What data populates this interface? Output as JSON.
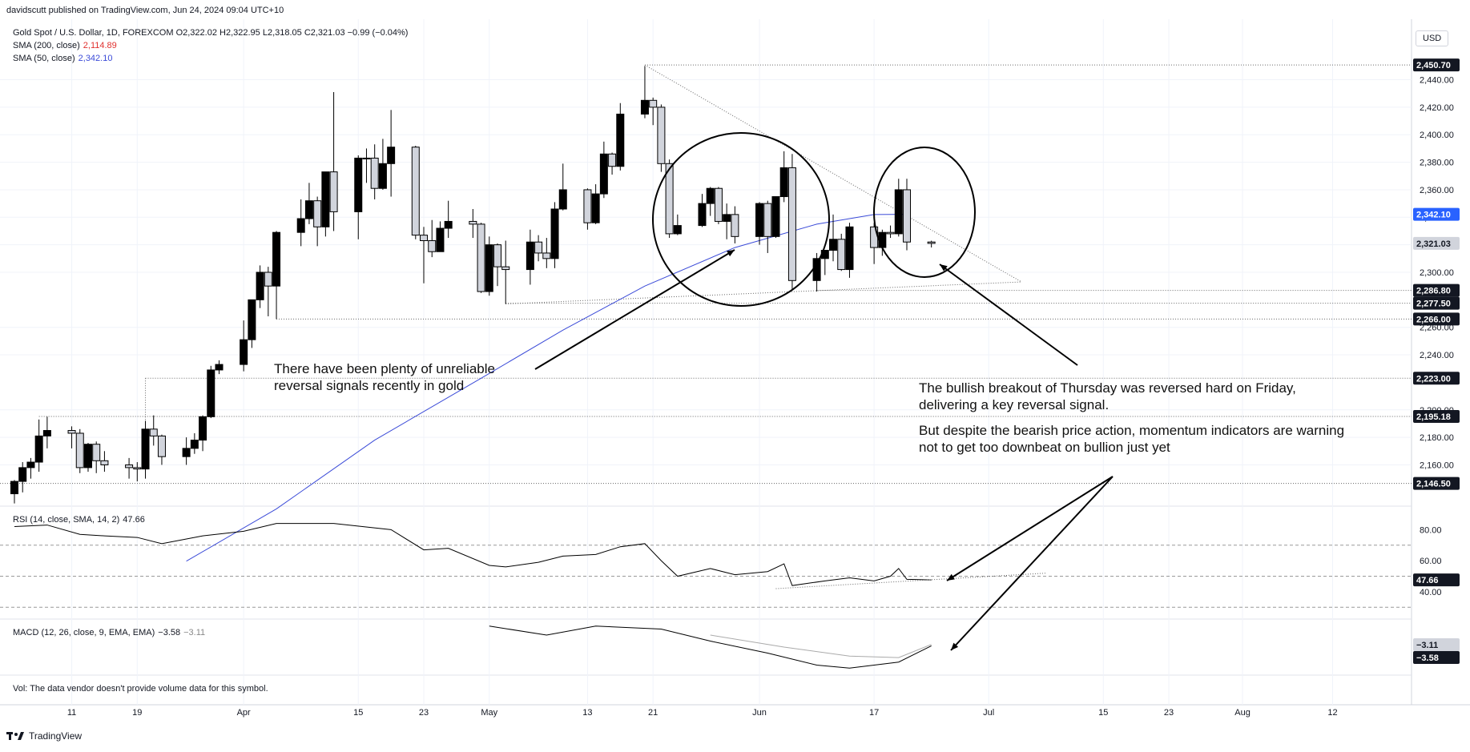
{
  "header": {
    "published": "davidscutt published on TradingView.com, Jun 24, 2024 09:04 UTC+10"
  },
  "legend": {
    "symbol": "Gold Spot / U.S. Dollar, 1D, FOREXCOM",
    "ohlc": "O2,322.02 H2,322.95 L2,318.05 C2,321.03 −0.99 (−0.04%)",
    "sma200_label": "SMA (200, close)",
    "sma200_value": "2,114.89",
    "sma50_label": "SMA (50, close)",
    "sma50_value": "2,342.10"
  },
  "currency": "USD",
  "annotations": {
    "left_line1": "There have been plenty of unreliable",
    "left_line2": "reversal signals recently in gold",
    "right_line1": "The bullish breakout of Thursday was reversed hard on Friday,",
    "right_line2": "delivering a key reversal signal.",
    "right_line3": "But despite the bearish price action, momentum indicators are warning",
    "right_line4": "not to get too downbeat on bullion just yet"
  },
  "rsi": {
    "label": "RSI (14, close, SMA, 14, 2)",
    "value": "47.66"
  },
  "macd": {
    "label": "MACD (12, 26, close, 9, EMA, EMA)",
    "value1": "−3.58",
    "value2": "−3.11"
  },
  "vol_note": "Vol: The data vendor doesn't provide volume data for this symbol.",
  "footer": {
    "brand": "TradingView"
  },
  "price_labels": [
    {
      "text": "2,450.70",
      "price": 2450.7,
      "style": "dark"
    },
    {
      "text": "2,342.10",
      "price": 2342.1,
      "style": "blue"
    },
    {
      "text": "2,321.03",
      "price": 2321.03,
      "style": "grey"
    },
    {
      "text": "2,286.80",
      "price": 2286.8,
      "style": "dark"
    },
    {
      "text": "2,277.50",
      "price": 2277.5,
      "style": "dark"
    },
    {
      "text": "2,266.00",
      "price": 2266.0,
      "style": "dark"
    },
    {
      "text": "2,223.00",
      "price": 2223.0,
      "style": "dark"
    },
    {
      "text": "2,195.18",
      "price": 2195.18,
      "style": "dark"
    },
    {
      "text": "2,146.50",
      "price": 2146.5,
      "style": "dark"
    }
  ],
  "rsi_labels": [
    {
      "text": "47.66",
      "value": 47.66
    }
  ],
  "macd_labels": [
    {
      "text": "−3.11",
      "style": "grey"
    },
    {
      "text": "−3.58",
      "style": "dark"
    }
  ],
  "colors": {
    "bull": "#ffffff",
    "bear": "#000000",
    "sma50": "#3b4bd8",
    "grid": "#f0f3fa"
  },
  "chart_data": {
    "type": "candlestick",
    "title": "Gold Spot / U.S. Dollar, 1D, FOREXCOM",
    "ylim": [
      2130,
      2470
    ],
    "y_ticks": [
      2160,
      2180,
      2200,
      2240,
      2260,
      2300,
      2320,
      2340,
      2360,
      2380,
      2400,
      2420,
      2440
    ],
    "x_ticks": [
      {
        "label": "11",
        "date": "2024-03-11"
      },
      {
        "label": "19",
        "date": "2024-03-19"
      },
      {
        "label": "Apr",
        "date": "2024-04-01"
      },
      {
        "label": "15",
        "date": "2024-04-15"
      },
      {
        "label": "23",
        "date": "2024-04-23"
      },
      {
        "label": "May",
        "date": "2024-05-01"
      },
      {
        "label": "13",
        "date": "2024-05-13"
      },
      {
        "label": "21",
        "date": "2024-05-21"
      },
      {
        "label": "Jun",
        "date": "2024-06-03"
      },
      {
        "label": "17",
        "date": "2024-06-17"
      },
      {
        "label": "Jul",
        "date": "2024-07-01"
      },
      {
        "label": "15",
        "date": "2024-07-15"
      },
      {
        "label": "23",
        "date": "2024-07-23"
      },
      {
        "label": "Aug",
        "date": "2024-08-01"
      },
      {
        "label": "12",
        "date": "2024-08-12"
      }
    ],
    "series_ohlc": {
      "columns": [
        "date",
        "open",
        "high",
        "low",
        "close"
      ],
      "data": [
        [
          "2024-03-04",
          2139,
          2149,
          2132,
          2148
        ],
        [
          "2024-03-05",
          2148,
          2162,
          2140,
          2158
        ],
        [
          "2024-03-06",
          2158,
          2165,
          2150,
          2162
        ],
        [
          "2024-03-07",
          2162,
          2193,
          2155,
          2181
        ],
        [
          "2024-03-08",
          2181,
          2195,
          2172,
          2185
        ],
        [
          "2024-03-11",
          2185,
          2188,
          2172,
          2183
        ],
        [
          "2024-03-12",
          2183,
          2186,
          2154,
          2158
        ],
        [
          "2024-03-13",
          2158,
          2176,
          2155,
          2175
        ],
        [
          "2024-03-14",
          2175,
          2177,
          2154,
          2163
        ],
        [
          "2024-03-15",
          2163,
          2170,
          2155,
          2160
        ],
        [
          "2024-03-18",
          2160,
          2165,
          2150,
          2158
        ],
        [
          "2024-03-19",
          2158,
          2162,
          2148,
          2157
        ],
        [
          "2024-03-20",
          2157,
          2192,
          2150,
          2186
        ],
        [
          "2024-03-21",
          2186,
          2196,
          2174,
          2181
        ],
        [
          "2024-03-22",
          2181,
          2182,
          2160,
          2166
        ],
        [
          "2024-03-25",
          2166,
          2180,
          2160,
          2172
        ],
        [
          "2024-03-26",
          2172,
          2183,
          2168,
          2178
        ],
        [
          "2024-03-27",
          2178,
          2196,
          2170,
          2195
        ],
        [
          "2024-03-28",
          2195,
          2232,
          2194,
          2229
        ],
        [
          "2024-03-29",
          2229,
          2236,
          2226,
          2233
        ],
        [
          "2024-04-01",
          2233,
          2265,
          2228,
          2251
        ],
        [
          "2024-04-02",
          2251,
          2280,
          2245,
          2280
        ],
        [
          "2024-04-03",
          2280,
          2305,
          2274,
          2300
        ],
        [
          "2024-04-04",
          2300,
          2304,
          2268,
          2290
        ],
        [
          "2024-04-05",
          2290,
          2330,
          2266,
          2329
        ],
        [
          "2024-04-08",
          2329,
          2353,
          2319,
          2339
        ],
        [
          "2024-04-09",
          2339,
          2365,
          2335,
          2352
        ],
        [
          "2024-04-10",
          2352,
          2355,
          2319,
          2333
        ],
        [
          "2024-04-11",
          2333,
          2371,
          2326,
          2373
        ],
        [
          "2024-04-12",
          2373,
          2431,
          2330,
          2344
        ],
        [
          "2024-04-15",
          2344,
          2385,
          2324,
          2383
        ],
        [
          "2024-04-16",
          2383,
          2390,
          2365,
          2383
        ],
        [
          "2024-04-17",
          2383,
          2393,
          2353,
          2361
        ],
        [
          "2024-04-18",
          2361,
          2397,
          2360,
          2379
        ],
        [
          "2024-04-19",
          2379,
          2418,
          2355,
          2391
        ],
        [
          "2024-04-22",
          2391,
          2392,
          2324,
          2327
        ],
        [
          "2024-04-23",
          2327,
          2333,
          2292,
          2323
        ],
        [
          "2024-04-24",
          2323,
          2338,
          2311,
          2315
        ],
        [
          "2024-04-25",
          2315,
          2337,
          2315,
          2332
        ],
        [
          "2024-04-26",
          2332,
          2352,
          2325,
          2337
        ],
        [
          "2024-04-29",
          2337,
          2346,
          2325,
          2335
        ],
        [
          "2024-04-30",
          2335,
          2336,
          2285,
          2286
        ],
        [
          "2024-05-01",
          2286,
          2326,
          2283,
          2320
        ],
        [
          "2024-05-02",
          2320,
          2321,
          2290,
          2304
        ],
        [
          "2024-05-03",
          2304,
          2323,
          2277,
          2302
        ],
        [
          "2024-05-06",
          2302,
          2331,
          2291,
          2322
        ],
        [
          "2024-05-07",
          2322,
          2327,
          2308,
          2314
        ],
        [
          "2024-05-08",
          2314,
          2325,
          2303,
          2310
        ],
        [
          "2024-05-09",
          2310,
          2351,
          2303,
          2346
        ],
        [
          "2024-05-10",
          2346,
          2379,
          2345,
          2360
        ],
        [
          "2024-05-13",
          2360,
          2361,
          2331,
          2336
        ],
        [
          "2024-05-14",
          2336,
          2364,
          2335,
          2357
        ],
        [
          "2024-05-15",
          2357,
          2395,
          2354,
          2386
        ],
        [
          "2024-05-16",
          2386,
          2387,
          2371,
          2377
        ],
        [
          "2024-05-17",
          2377,
          2423,
          2374,
          2415
        ],
        [
          "2024-05-20",
          2415,
          2450,
          2412,
          2425
        ],
        [
          "2024-05-21",
          2425,
          2427,
          2407,
          2420
        ],
        [
          "2024-05-22",
          2420,
          2422,
          2373,
          2379
        ],
        [
          "2024-05-23",
          2379,
          2382,
          2325,
          2328
        ],
        [
          "2024-05-24",
          2328,
          2342,
          2327,
          2334
        ],
        [
          "2024-05-27",
          2334,
          2357,
          2333,
          2350
        ],
        [
          "2024-05-28",
          2350,
          2362,
          2341,
          2361
        ],
        [
          "2024-05-29",
          2361,
          2362,
          2335,
          2337
        ],
        [
          "2024-05-30",
          2337,
          2350,
          2324,
          2342
        ],
        [
          "2024-05-31",
          2342,
          2348,
          2321,
          2326
        ],
        [
          "2024-06-03",
          2326,
          2351,
          2320,
          2350
        ],
        [
          "2024-06-04",
          2350,
          2352,
          2314,
          2326
        ],
        [
          "2024-06-05",
          2326,
          2355,
          2325,
          2355
        ],
        [
          "2024-06-06",
          2355,
          2388,
          2351,
          2376
        ],
        [
          "2024-06-07",
          2376,
          2386,
          2287,
          2294
        ],
        [
          "2024-06-10",
          2294,
          2314,
          2286,
          2310
        ],
        [
          "2024-06-11",
          2310,
          2316,
          2298,
          2316
        ],
        [
          "2024-06-12",
          2316,
          2342,
          2308,
          2324
        ],
        [
          "2024-06-13",
          2324,
          2328,
          2301,
          2302
        ],
        [
          "2024-06-14",
          2302,
          2336,
          2296,
          2333
        ],
        [
          "2024-06-17",
          2333,
          2336,
          2306,
          2318
        ],
        [
          "2024-06-18",
          2318,
          2331,
          2312,
          2329
        ],
        [
          "2024-06-19",
          2329,
          2334,
          2325,
          2328
        ],
        [
          "2024-06-20",
          2328,
          2368,
          2326,
          2360
        ],
        [
          "2024-06-21",
          2360,
          2368,
          2316,
          2322
        ],
        [
          "2024-06-24",
          2322.02,
          2322.95,
          2318.05,
          2321.03
        ]
      ]
    },
    "sma50": {
      "columns": [
        "date",
        "value"
      ],
      "data": [
        [
          "2024-03-25",
          2090
        ],
        [
          "2024-04-05",
          2128
        ],
        [
          "2024-04-17",
          2178
        ],
        [
          "2024-04-30",
          2223
        ],
        [
          "2024-05-10",
          2258
        ],
        [
          "2024-05-20",
          2290
        ],
        [
          "2024-05-31",
          2318
        ],
        [
          "2024-06-10",
          2335
        ],
        [
          "2024-06-17",
          2342
        ],
        [
          "2024-06-21",
          2342.1
        ]
      ]
    },
    "rsi_ylim": [
      25,
      90
    ],
    "rsi_ticks": [
      40,
      60,
      80
    ],
    "rsi": {
      "columns": [
        "date",
        "value"
      ],
      "data": [
        [
          "2024-03-04",
          82
        ],
        [
          "2024-03-08",
          83
        ],
        [
          "2024-03-12",
          77
        ],
        [
          "2024-03-15",
          76
        ],
        [
          "2024-03-19",
          75
        ],
        [
          "2024-03-22",
          71
        ],
        [
          "2024-03-27",
          76
        ],
        [
          "2024-04-01",
          79
        ],
        [
          "2024-04-05",
          84
        ],
        [
          "2024-04-12",
          84
        ],
        [
          "2024-04-19",
          80
        ],
        [
          "2024-04-23",
          67
        ],
        [
          "2024-04-26",
          68
        ],
        [
          "2024-05-01",
          57
        ],
        [
          "2024-05-03",
          56
        ],
        [
          "2024-05-07",
          59
        ],
        [
          "2024-05-10",
          63
        ],
        [
          "2024-05-14",
          64
        ],
        [
          "2024-05-17",
          69
        ],
        [
          "2024-05-20",
          71
        ],
        [
          "2024-05-22",
          60
        ],
        [
          "2024-05-24",
          50
        ],
        [
          "2024-05-28",
          55
        ],
        [
          "2024-05-31",
          51
        ],
        [
          "2024-06-04",
          53
        ],
        [
          "2024-06-06",
          58
        ],
        [
          "2024-06-07",
          44
        ],
        [
          "2024-06-11",
          47
        ],
        [
          "2024-06-14",
          49
        ],
        [
          "2024-06-17",
          47
        ],
        [
          "2024-06-19",
          50
        ],
        [
          "2024-06-20",
          55
        ],
        [
          "2024-06-21",
          48
        ],
        [
          "2024-06-24",
          47.66
        ]
      ]
    },
    "macd_ylim": [
      -12,
      4
    ],
    "macd": {
      "columns": [
        "date",
        "value"
      ],
      "data": [
        [
          "2024-05-01",
          3
        ],
        [
          "2024-05-08",
          0
        ],
        [
          "2024-05-14",
          3
        ],
        [
          "2024-05-22",
          2
        ],
        [
          "2024-05-28",
          -2
        ],
        [
          "2024-06-04",
          -6
        ],
        [
          "2024-06-10",
          -10
        ],
        [
          "2024-06-14",
          -11
        ],
        [
          "2024-06-20",
          -9
        ],
        [
          "2024-06-24",
          -3.58
        ]
      ]
    },
    "macd_signal": {
      "columns": [
        "date",
        "value"
      ],
      "data": [
        [
          "2024-05-28",
          0
        ],
        [
          "2024-06-06",
          -4
        ],
        [
          "2024-06-14",
          -7
        ],
        [
          "2024-06-20",
          -7.5
        ],
        [
          "2024-06-24",
          -3.11
        ]
      ]
    }
  }
}
